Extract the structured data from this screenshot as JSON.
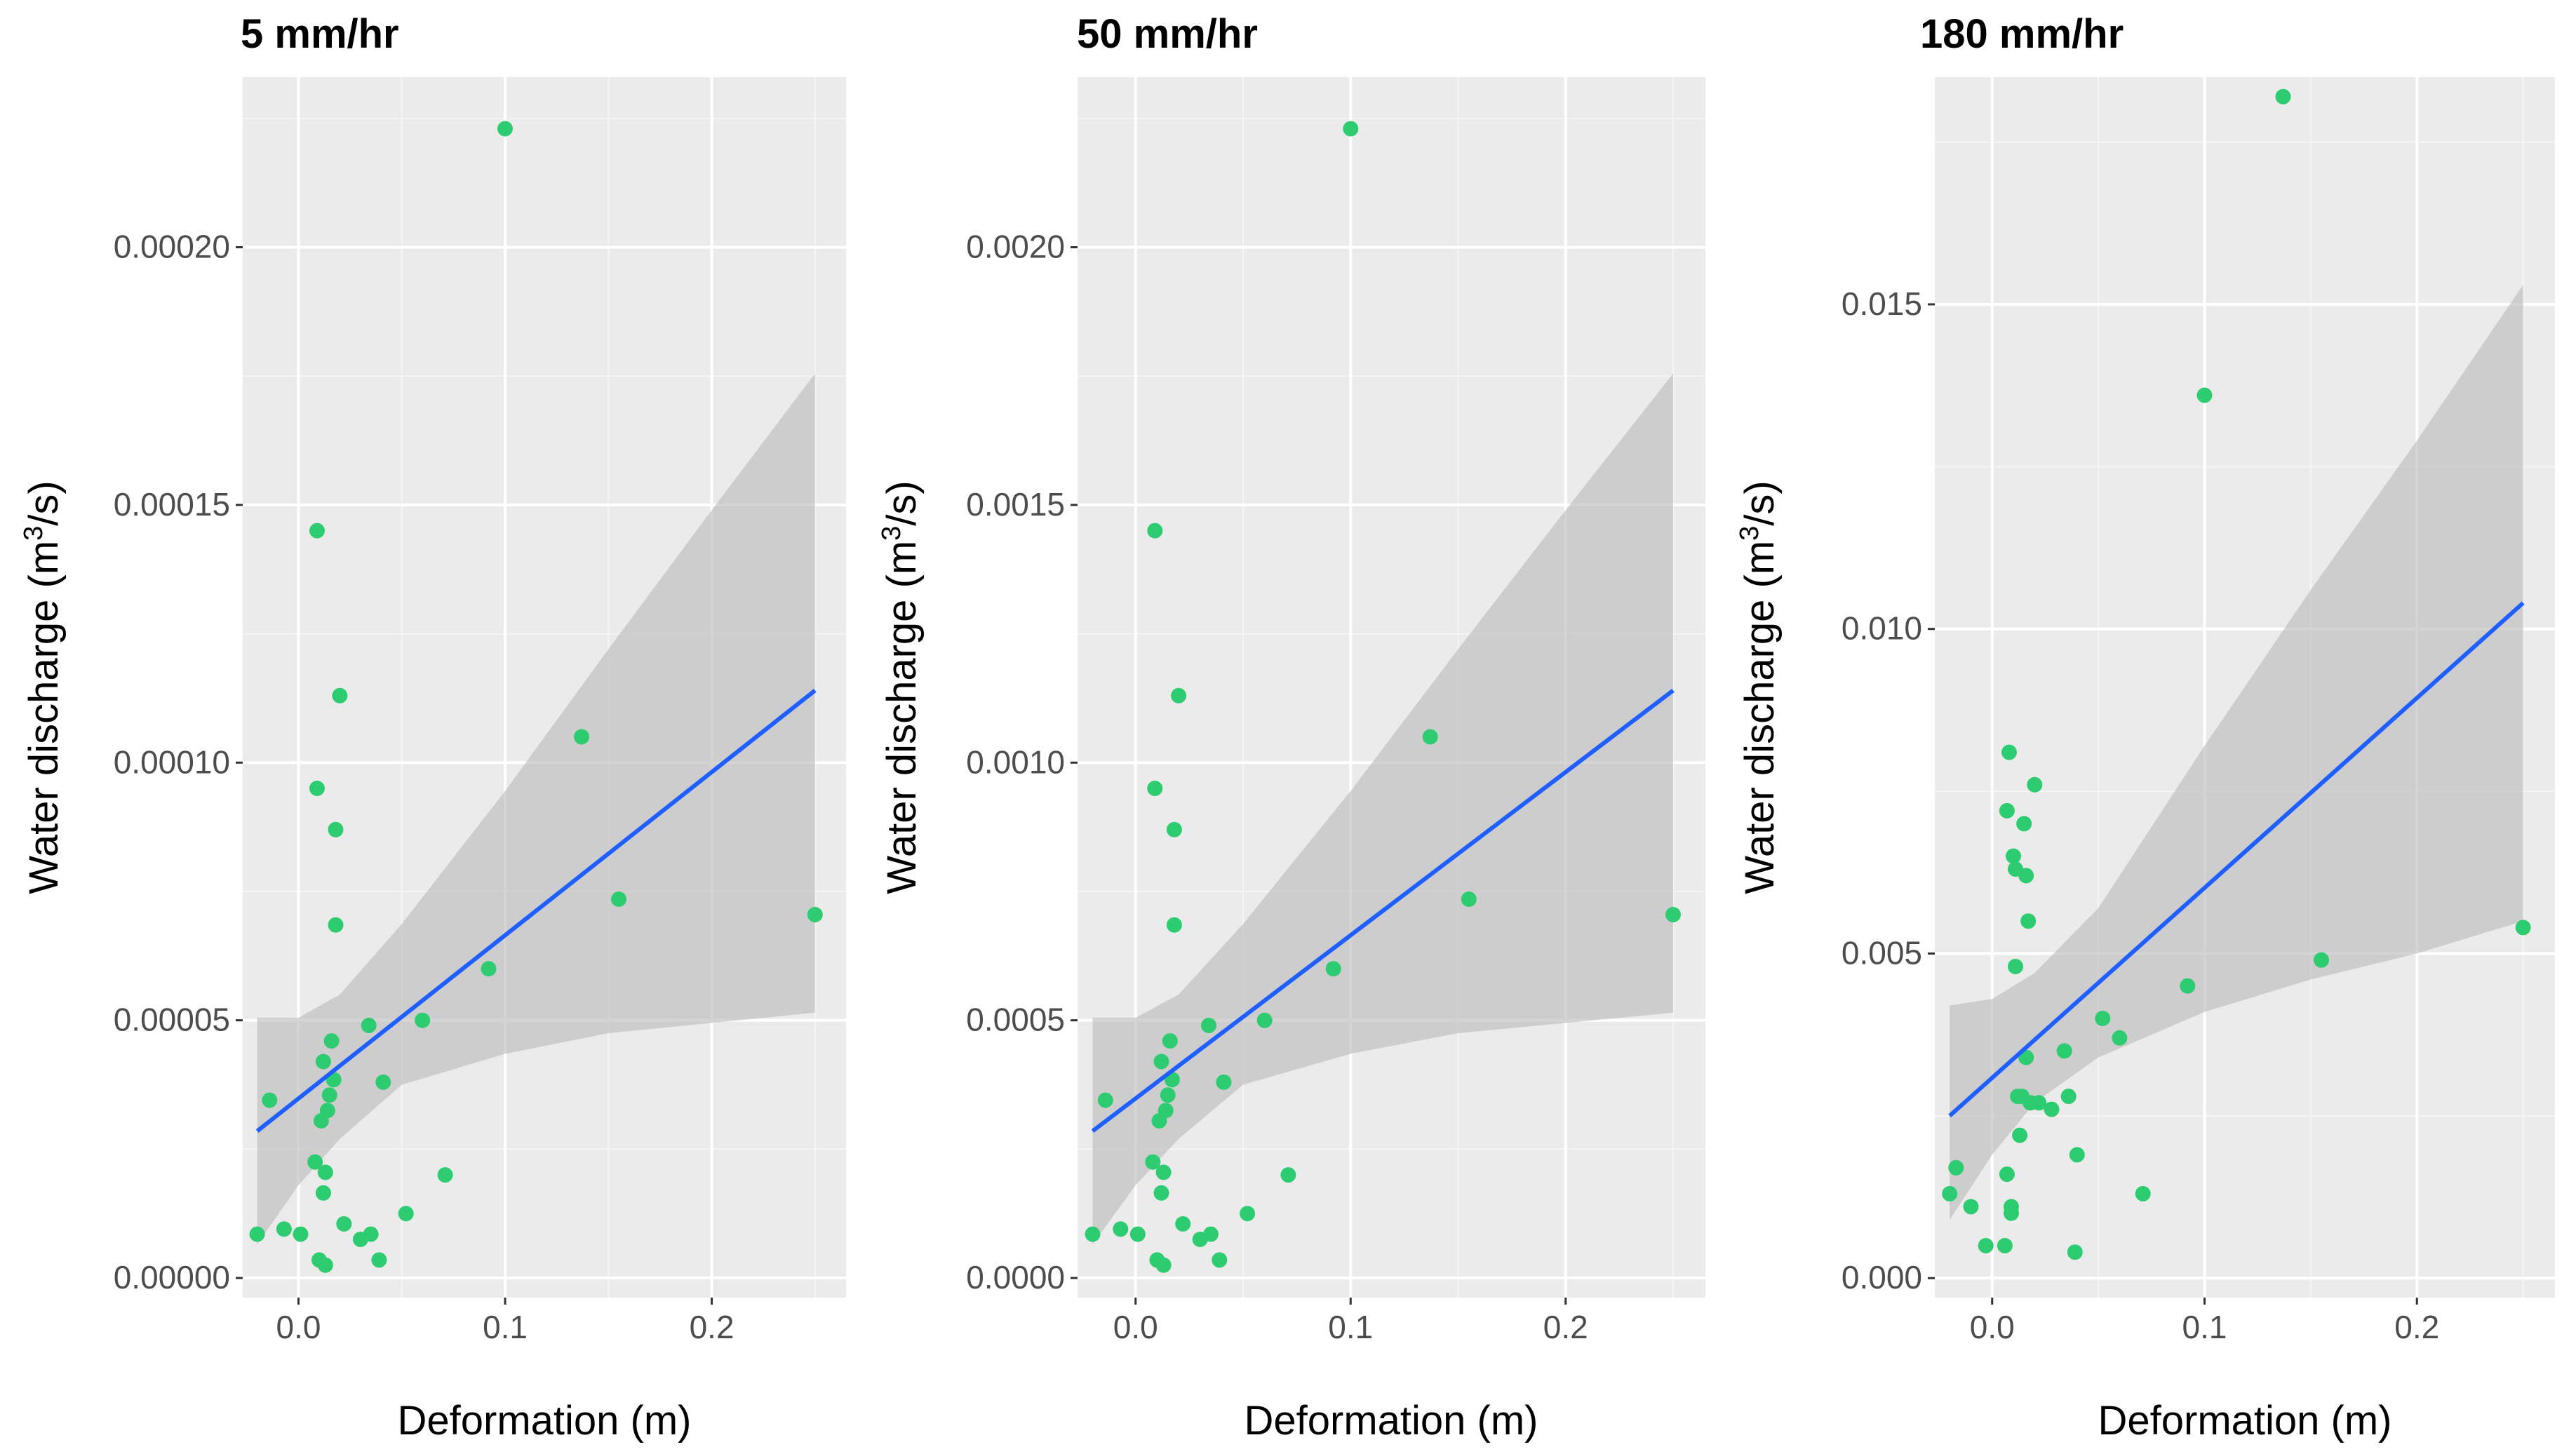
{
  "colors": {
    "panel_bg": "#ebebeb",
    "grid_major": "#ffffff",
    "grid_minor": "#f5f5f5",
    "points": "#2ecc71",
    "fit_line": "#1f5fff",
    "confidence_band": "#bdbdbd",
    "text": "#000000",
    "tick_text": "#4d4d4d"
  },
  "chart_data": [
    {
      "type": "scatter",
      "title": "5 mm/hr",
      "xlabel": "Deformation (m)",
      "ylabel": "Water discharge (m",
      "ylabel_sup": "3",
      "ylabel_tail": "/s)",
      "xlim": [
        -0.027,
        0.265
      ],
      "ylim": [
        -3.8e-06,
        0.000233
      ],
      "xticks": [
        0.0,
        0.1,
        0.2
      ],
      "xtick_labels": [
        "0.0",
        "0.1",
        "0.2"
      ],
      "yticks": [
        0.0,
        5e-05,
        0.0001,
        0.00015,
        0.0002
      ],
      "ytick_labels": [
        "0.00000",
        "0.00005",
        "0.00010",
        "0.00015",
        "0.00020"
      ],
      "points": [
        [
          -0.02,
          8.5e-06
        ],
        [
          -0.014,
          3.45e-05
        ],
        [
          -0.007,
          9.5e-06
        ],
        [
          0.001,
          8.5e-06
        ],
        [
          0.008,
          2.25e-05
        ],
        [
          0.009,
          0.000145
        ],
        [
          0.009,
          9.5e-05
        ],
        [
          0.01,
          3.5e-06
        ],
        [
          0.011,
          3.05e-05
        ],
        [
          0.012,
          1.65e-05
        ],
        [
          0.012,
          4.2e-05
        ],
        [
          0.013,
          2.5e-06
        ],
        [
          0.013,
          2.05e-05
        ],
        [
          0.014,
          3.25e-05
        ],
        [
          0.015,
          3.55e-05
        ],
        [
          0.016,
          4.6e-05
        ],
        [
          0.017,
          3.85e-05
        ],
        [
          0.018,
          8.7e-05
        ],
        [
          0.018,
          6.85e-05
        ],
        [
          0.02,
          0.000113
        ],
        [
          0.022,
          1.05e-05
        ],
        [
          0.03,
          7.5e-06
        ],
        [
          0.034,
          4.9e-05
        ],
        [
          0.035,
          8.5e-06
        ],
        [
          0.039,
          3.5e-06
        ],
        [
          0.041,
          3.8e-05
        ],
        [
          0.052,
          1.25e-05
        ],
        [
          0.06,
          5e-05
        ],
        [
          0.071,
          2e-05
        ],
        [
          0.092,
          6e-05
        ],
        [
          0.1,
          0.000223
        ],
        [
          0.137,
          0.000105
        ],
        [
          0.155,
          7.35e-05
        ],
        [
          0.25,
          7.05e-05
        ]
      ],
      "fit": {
        "x": [
          -0.02,
          0.25
        ],
        "y": [
          2.85e-05,
          0.000114
        ]
      },
      "band": {
        "x": [
          -0.02,
          0.0,
          0.02,
          0.05,
          0.1,
          0.15,
          0.2,
          0.25
        ],
        "upper": [
          5.05e-05,
          5.05e-05,
          5.5e-05,
          6.87e-05,
          9.45e-05,
          0.000122,
          0.000149,
          0.0001755
        ],
        "lower": [
          6.5e-06,
          1.8e-05,
          2.7e-05,
          3.75e-05,
          4.35e-05,
          4.75e-05,
          4.95e-05,
          5.15e-05
        ]
      }
    },
    {
      "type": "scatter",
      "title": "50 mm/hr",
      "xlabel": "Deformation (m)",
      "ylabel": "Water discharge (m",
      "ylabel_sup": "3",
      "ylabel_tail": "/s)",
      "xlim": [
        -0.027,
        0.265
      ],
      "ylim": [
        -3.8e-05,
        0.00233
      ],
      "xticks": [
        0.0,
        0.1,
        0.2
      ],
      "xtick_labels": [
        "0.0",
        "0.1",
        "0.2"
      ],
      "yticks": [
        0.0,
        0.0005,
        0.001,
        0.0015,
        0.002
      ],
      "ytick_labels": [
        "0.0000",
        "0.0005",
        "0.0010",
        "0.0015",
        "0.0020"
      ],
      "points": [
        [
          -0.02,
          8.5e-05
        ],
        [
          -0.014,
          0.000345
        ],
        [
          -0.007,
          9.5e-05
        ],
        [
          0.001,
          8.5e-05
        ],
        [
          0.008,
          0.000225
        ],
        [
          0.009,
          0.00145
        ],
        [
          0.009,
          0.00095
        ],
        [
          0.01,
          3.5e-05
        ],
        [
          0.011,
          0.000305
        ],
        [
          0.012,
          0.000165
        ],
        [
          0.012,
          0.00042
        ],
        [
          0.013,
          2.5e-05
        ],
        [
          0.013,
          0.000205
        ],
        [
          0.014,
          0.000325
        ],
        [
          0.015,
          0.000355
        ],
        [
          0.016,
          0.00046
        ],
        [
          0.017,
          0.000385
        ],
        [
          0.018,
          0.00087
        ],
        [
          0.018,
          0.000685
        ],
        [
          0.02,
          0.00113
        ],
        [
          0.022,
          0.000105
        ],
        [
          0.03,
          7.5e-05
        ],
        [
          0.034,
          0.00049
        ],
        [
          0.035,
          8.5e-05
        ],
        [
          0.039,
          3.5e-05
        ],
        [
          0.041,
          0.00038
        ],
        [
          0.052,
          0.000125
        ],
        [
          0.06,
          0.0005
        ],
        [
          0.071,
          0.0002
        ],
        [
          0.092,
          0.0006
        ],
        [
          0.1,
          0.00223
        ],
        [
          0.137,
          0.00105
        ],
        [
          0.155,
          0.000735
        ],
        [
          0.25,
          0.000705
        ]
      ],
      "fit": {
        "x": [
          -0.02,
          0.25
        ],
        "y": [
          0.000285,
          0.00114
        ]
      },
      "band": {
        "x": [
          -0.02,
          0.0,
          0.02,
          0.05,
          0.1,
          0.15,
          0.2,
          0.25
        ],
        "upper": [
          0.000505,
          0.000505,
          0.00055,
          0.000687,
          0.000945,
          0.00122,
          0.00149,
          0.001755
        ],
        "lower": [
          6.5e-05,
          0.00018,
          0.00027,
          0.000375,
          0.000435,
          0.000475,
          0.000495,
          0.000515
        ]
      }
    },
    {
      "type": "scatter",
      "title": "180 mm/hr",
      "xlabel": "Deformation (m)",
      "ylabel": "Water discharge (m",
      "ylabel_sup": "3",
      "ylabel_tail": "/s)",
      "xlim": [
        -0.027,
        0.265
      ],
      "ylim": [
        -0.0003,
        0.0185
      ],
      "xticks": [
        0.0,
        0.1,
        0.2
      ],
      "xtick_labels": [
        "0.0",
        "0.1",
        "0.2"
      ],
      "yticks": [
        0.0,
        0.005,
        0.01,
        0.015
      ],
      "ytick_labels": [
        "0.000",
        "0.005",
        "0.010",
        "0.015"
      ],
      "points": [
        [
          -0.02,
          0.0013
        ],
        [
          -0.017,
          0.0017
        ],
        [
          -0.01,
          0.0011
        ],
        [
          -0.003,
          0.0005
        ],
        [
          0.006,
          0.0005
        ],
        [
          0.007,
          0.0016
        ],
        [
          0.007,
          0.0072
        ],
        [
          0.008,
          0.0081
        ],
        [
          0.009,
          0.0011
        ],
        [
          0.009,
          0.001
        ],
        [
          0.01,
          0.0065
        ],
        [
          0.011,
          0.0063
        ],
        [
          0.011,
          0.0048
        ],
        [
          0.012,
          0.0028
        ],
        [
          0.013,
          0.0022
        ],
        [
          0.014,
          0.0028
        ],
        [
          0.015,
          0.007
        ],
        [
          0.016,
          0.0062
        ],
        [
          0.016,
          0.0034
        ],
        [
          0.017,
          0.0055
        ],
        [
          0.018,
          0.0027
        ],
        [
          0.02,
          0.0076
        ],
        [
          0.022,
          0.0027
        ],
        [
          0.028,
          0.0026
        ],
        [
          0.034,
          0.0035
        ],
        [
          0.036,
          0.0028
        ],
        [
          0.039,
          0.0004
        ],
        [
          0.04,
          0.0019
        ],
        [
          0.052,
          0.004
        ],
        [
          0.06,
          0.0037
        ],
        [
          0.071,
          0.0013
        ],
        [
          0.092,
          0.0045
        ],
        [
          0.1,
          0.0136
        ],
        [
          0.137,
          0.0182
        ],
        [
          0.155,
          0.0049
        ],
        [
          0.25,
          0.0054
        ]
      ],
      "fit": {
        "x": [
          -0.02,
          0.25
        ],
        "y": [
          0.0025,
          0.0104
        ]
      },
      "band": {
        "x": [
          -0.02,
          0.0,
          0.02,
          0.05,
          0.1,
          0.15,
          0.2,
          0.25
        ],
        "upper": [
          0.0042,
          0.0043,
          0.0047,
          0.0057,
          0.0082,
          0.0106,
          0.0129,
          0.0153
        ],
        "lower": [
          0.0009,
          0.0019,
          0.0027,
          0.0034,
          0.0041,
          0.0046,
          0.005,
          0.0055
        ]
      }
    }
  ]
}
